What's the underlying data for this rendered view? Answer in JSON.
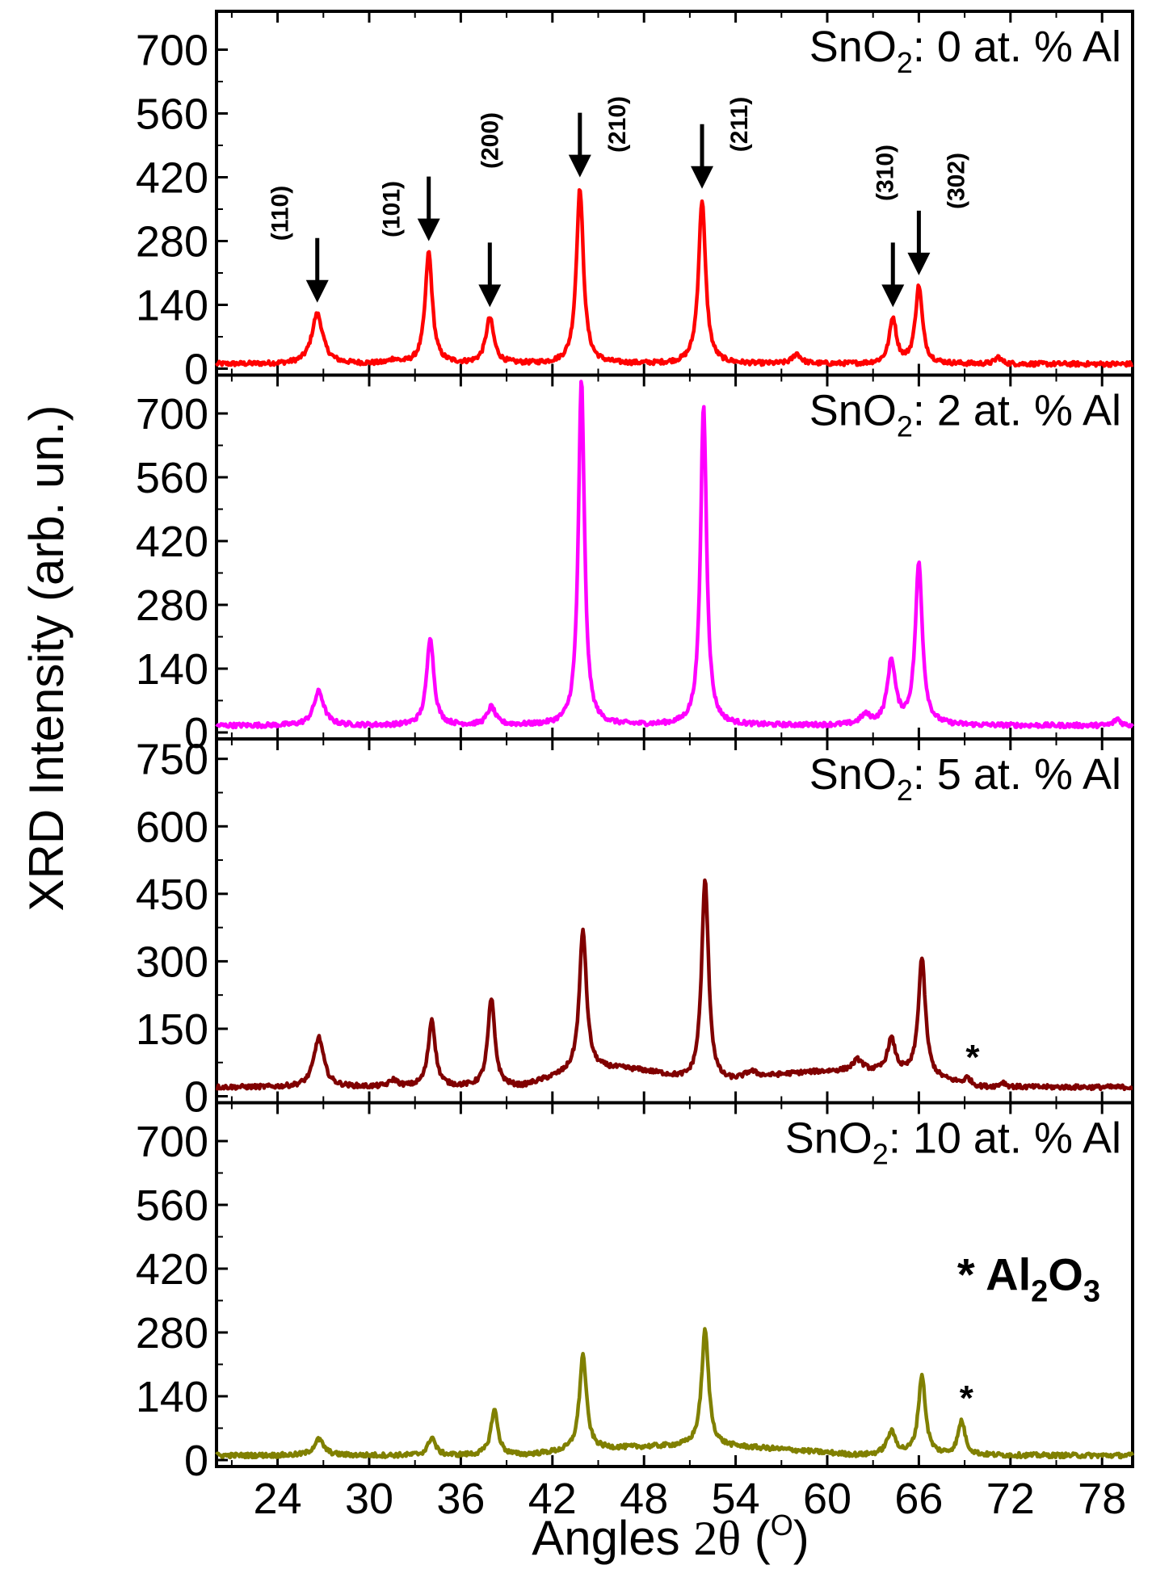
{
  "chart_data": {
    "type": "line",
    "ylabel": "XRD Intensity (arb. un.)",
    "xlabel": "Angles 2θ (°)",
    "xlabel_parts": {
      "prefix": "Angles ",
      "theta": "2θ",
      "open": " (",
      "sup": "O",
      "close": ")"
    },
    "xlim": [
      20,
      80
    ],
    "xticks": [
      24,
      30,
      36,
      42,
      48,
      54,
      60,
      66,
      72,
      78
    ],
    "panels": [
      {
        "label": "SnO2: 0 at. % Al",
        "label_parts": {
          "pre": "SnO",
          "sub": "2",
          "post": ": 0 at. % Al"
        },
        "color": "#ff0000",
        "ylim": [
          0,
          770
        ],
        "yticks": [
          0,
          140,
          280,
          420,
          560,
          700
        ],
        "baseline": 10,
        "peaks": [
          {
            "x": 26.6,
            "height": 110,
            "width": 0.55
          },
          {
            "x": 31.6,
            "height": 8,
            "width": 0.4
          },
          {
            "x": 33.9,
            "height": 245,
            "width": 0.35
          },
          {
            "x": 37.9,
            "height": 100,
            "width": 0.4
          },
          {
            "x": 43.8,
            "height": 385,
            "width": 0.35
          },
          {
            "x": 51.8,
            "height": 360,
            "width": 0.35
          },
          {
            "x": 58.0,
            "height": 22,
            "width": 0.4
          },
          {
            "x": 64.3,
            "height": 100,
            "width": 0.35
          },
          {
            "x": 66.0,
            "height": 170,
            "width": 0.35
          },
          {
            "x": 71.2,
            "height": 15,
            "width": 0.3
          }
        ],
        "annotations": [
          {
            "text": "(110)",
            "x": 26.6
          },
          {
            "text": "(101)",
            "x": 33.9
          },
          {
            "text": "(200)",
            "x": 37.9
          },
          {
            "text": "(210)",
            "x": 43.8
          },
          {
            "text": "(211)",
            "x": 51.8
          },
          {
            "text": "(310)",
            "x": 64.3
          },
          {
            "text": "(302)",
            "x": 66.0
          }
        ]
      },
      {
        "label": "SnO2: 2 at. % Al",
        "label_parts": {
          "pre": "SnO",
          "sub": "2",
          "post": ": 2 at. % Al"
        },
        "color": "#ff00ff",
        "ylim": [
          0,
          770
        ],
        "yticks": [
          0,
          140,
          280,
          420,
          560,
          700
        ],
        "baseline": 15,
        "peaks": [
          {
            "x": 26.7,
            "height": 75,
            "width": 0.5
          },
          {
            "x": 34.0,
            "height": 195,
            "width": 0.35
          },
          {
            "x": 38.0,
            "height": 40,
            "width": 0.4
          },
          {
            "x": 43.9,
            "height": 760,
            "width": 0.3
          },
          {
            "x": 51.9,
            "height": 705,
            "width": 0.3
          },
          {
            "x": 62.5,
            "height": 20,
            "width": 0.5
          },
          {
            "x": 64.2,
            "height": 140,
            "width": 0.4
          },
          {
            "x": 66.0,
            "height": 355,
            "width": 0.35
          },
          {
            "x": 79.0,
            "height": 15,
            "width": 0.3
          }
        ],
        "annotations": []
      },
      {
        "label": "SnO2: 5 at. % Al",
        "label_parts": {
          "pre": "SnO",
          "sub": "2",
          "post": ": 5 at. % Al"
        },
        "color": "#800000",
        "ylim": [
          0,
          780
        ],
        "yticks": [
          0,
          150,
          300,
          450,
          600,
          750
        ],
        "baseline": 20,
        "peaks": [
          {
            "x": 26.7,
            "height": 110,
            "width": 0.5
          },
          {
            "x": 31.6,
            "height": 15,
            "width": 0.4
          },
          {
            "x": 34.1,
            "height": 150,
            "width": 0.35
          },
          {
            "x": 38.0,
            "height": 195,
            "width": 0.35
          },
          {
            "x": 44.0,
            "height": 315,
            "width": 0.35
          },
          {
            "x": 52.0,
            "height": 460,
            "width": 0.35
          },
          {
            "x": 55.0,
            "height": 15,
            "width": 0.6
          },
          {
            "x": 62.0,
            "height": 25,
            "width": 0.5
          },
          {
            "x": 64.2,
            "height": 75,
            "width": 0.4
          },
          {
            "x": 66.2,
            "height": 265,
            "width": 0.35
          },
          {
            "x": 69.2,
            "height": 15,
            "width": 0.3
          },
          {
            "x": 71.5,
            "height": 10,
            "width": 0.3
          }
        ],
        "slopes": [
          {
            "from": 40.0,
            "to": 52.0,
            "rise": 40
          },
          {
            "from": 52.0,
            "to": 70.0,
            "rise": 35
          }
        ],
        "annotations": [
          {
            "text": "*",
            "x": 69.2
          }
        ]
      },
      {
        "label": "SnO2: 10 at. % Al",
        "label_parts": {
          "pre": "SnO",
          "sub": "2",
          "post": ": 10 at. % Al"
        },
        "color": "#808000",
        "ylim": [
          0,
          770
        ],
        "yticks": [
          0,
          140,
          280,
          420,
          560,
          700
        ],
        "baseline": 10,
        "peaks": [
          {
            "x": 26.7,
            "height": 35,
            "width": 0.5
          },
          {
            "x": 34.1,
            "height": 40,
            "width": 0.35
          },
          {
            "x": 38.2,
            "height": 100,
            "width": 0.35
          },
          {
            "x": 44.0,
            "height": 210,
            "width": 0.35
          },
          {
            "x": 52.0,
            "height": 255,
            "width": 0.35
          },
          {
            "x": 64.2,
            "height": 50,
            "width": 0.45
          },
          {
            "x": 66.2,
            "height": 175,
            "width": 0.35
          },
          {
            "x": 68.8,
            "height": 75,
            "width": 0.35
          }
        ],
        "slopes": [
          {
            "from": 40.0,
            "to": 62.0,
            "rise": 20
          }
        ],
        "annotations": [
          {
            "text": "*",
            "x": 68.8
          }
        ],
        "note": "* Al2O3",
        "note_parts": {
          "star": "* ",
          "a": "Al",
          "s1": "2",
          "b": "O",
          "s2": "3"
        }
      }
    ]
  }
}
